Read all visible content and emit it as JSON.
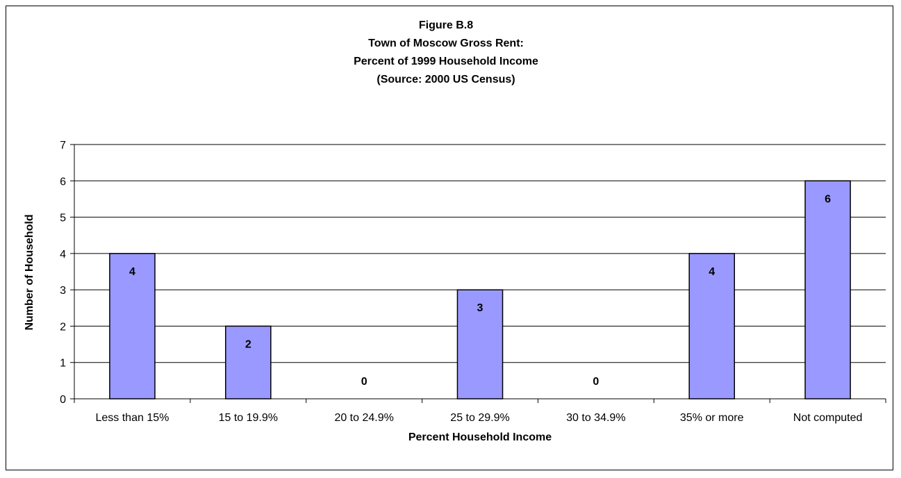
{
  "chart_data": {
    "type": "bar",
    "title_lines": [
      "Figure B.8",
      "Town of Moscow Gross Rent:",
      "Percent of 1999 Household Income",
      "(Source:  2000 US Census)"
    ],
    "categories": [
      "Less than 15%",
      "15 to 19.9%",
      "20 to 24.9%",
      "25 to 29.9%",
      "30 to 34.9%",
      "35% or more",
      "Not computed"
    ],
    "values": [
      4,
      2,
      0,
      3,
      0,
      4,
      6
    ],
    "xlabel": "Percent Household Income",
    "ylabel": "Number of Household",
    "ylim": [
      0,
      7
    ],
    "yticks": [
      0,
      1,
      2,
      3,
      4,
      5,
      6,
      7
    ],
    "grid": true,
    "legend": "none",
    "bar_color": "#9999ff",
    "bar_edge_color": "#000000",
    "data_labels": true
  }
}
